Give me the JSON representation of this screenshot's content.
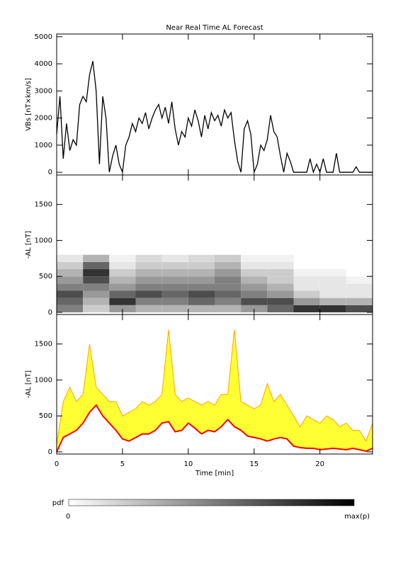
{
  "chart_data": [
    {
      "type": "line",
      "title": "Near Real Time AL Forecast",
      "ylabel": "VBs [nT×km/s]",
      "color": "#000000",
      "x": [
        0,
        0.25,
        0.5,
        0.75,
        1,
        1.25,
        1.5,
        1.75,
        2,
        2.25,
        2.5,
        2.75,
        3,
        3.25,
        3.5,
        3.75,
        4,
        4.25,
        4.5,
        4.75,
        5,
        5.25,
        5.5,
        5.75,
        6,
        6.25,
        6.5,
        6.75,
        7,
        7.25,
        7.5,
        7.75,
        8,
        8.25,
        8.5,
        8.75,
        9,
        9.25,
        9.5,
        9.75,
        10,
        10.25,
        10.5,
        10.75,
        11,
        11.25,
        11.5,
        11.75,
        12,
        12.25,
        12.5,
        12.75,
        13,
        13.25,
        13.5,
        13.75,
        14,
        14.25,
        14.5,
        14.75,
        15,
        15.25,
        15.5,
        15.75,
        16,
        16.25,
        16.5,
        16.75,
        17,
        17.25,
        17.5,
        17.75,
        18,
        18.25,
        18.5,
        18.75,
        19,
        19.25,
        19.5,
        19.75,
        20,
        20.25,
        20.5,
        20.75,
        21,
        21.25,
        21.5,
        21.75,
        22,
        22.25,
        22.5,
        22.75,
        23,
        23.25,
        23.5,
        23.75,
        24
      ],
      "values": [
        1400,
        2800,
        500,
        1800,
        800,
        1200,
        1000,
        2500,
        2800,
        2600,
        3600,
        4100,
        3000,
        300,
        2800,
        2000,
        0,
        600,
        1000,
        300,
        0,
        1000,
        1300,
        1800,
        1500,
        2000,
        1800,
        2200,
        1600,
        2000,
        2300,
        2500,
        2000,
        2400,
        1800,
        2600,
        1600,
        1000,
        1500,
        1300,
        2000,
        1700,
        2300,
        1900,
        1300,
        2100,
        1600,
        2200,
        1900,
        2100,
        1700,
        2300,
        2000,
        2200,
        1200,
        400,
        0,
        1600,
        1900,
        1400,
        0,
        300,
        1000,
        800,
        1200,
        2100,
        1500,
        1300,
        600,
        0,
        700,
        400,
        0,
        0,
        0,
        0,
        0,
        500,
        0,
        300,
        0,
        500,
        0,
        0,
        0,
        700,
        0,
        0,
        0,
        0,
        0,
        200,
        0,
        0,
        0,
        0,
        0
      ],
      "xlim": [
        0,
        24
      ],
      "xticks": [
        0,
        5,
        10,
        15,
        20
      ],
      "show_xtick_labels": false,
      "ylim": [
        -100,
        5100
      ],
      "yticks": [
        0,
        1000,
        2000,
        3000,
        4000,
        5000
      ]
    },
    {
      "type": "heatmap",
      "ylabel": "-AL [nT]",
      "colors": [
        "#ffffff",
        "#000000"
      ],
      "x_edges": [
        0,
        2,
        4,
        6,
        8,
        10,
        12,
        14,
        16,
        18,
        20,
        22,
        24
      ],
      "y_edges": [
        0,
        100,
        200,
        300,
        400,
        500,
        600,
        700,
        800
      ],
      "z": [
        [
          0.5,
          0.2,
          0.4,
          0.3,
          0.3,
          0.3,
          0.3,
          0.4,
          0.6,
          0.8,
          0.8,
          0.7
        ],
        [
          0.6,
          0.3,
          0.8,
          0.5,
          0.5,
          0.6,
          0.5,
          0.7,
          0.7,
          0.4,
          0.3,
          0.3
        ],
        [
          0.7,
          0.4,
          0.6,
          0.7,
          0.6,
          0.7,
          0.6,
          0.5,
          0.4,
          0.2,
          0.1,
          0.1
        ],
        [
          0.5,
          0.5,
          0.4,
          0.5,
          0.5,
          0.5,
          0.5,
          0.4,
          0.3,
          0.1,
          0.1,
          0.1
        ],
        [
          0.4,
          0.7,
          0.3,
          0.4,
          0.4,
          0.4,
          0.5,
          0.3,
          0.2,
          0.1,
          0.1,
          0.05
        ],
        [
          0.3,
          0.8,
          0.2,
          0.3,
          0.3,
          0.3,
          0.4,
          0.2,
          0.2,
          0.05,
          0.05,
          0
        ],
        [
          0.2,
          0.6,
          0.1,
          0.2,
          0.2,
          0.2,
          0.3,
          0.1,
          0.1,
          0,
          0,
          0
        ],
        [
          0.1,
          0.3,
          0.05,
          0.15,
          0.1,
          0.15,
          0.2,
          0.05,
          0.05,
          0,
          0,
          0
        ]
      ],
      "xlim": [
        0,
        24
      ],
      "xticks": [
        0,
        5,
        10,
        15,
        20
      ],
      "show_xtick_labels": false,
      "ylim": [
        -30,
        1910
      ],
      "yticks": [
        0,
        500,
        1000,
        1500
      ]
    },
    {
      "type": "band",
      "ylabel": "-AL [nT]",
      "xlabel": "Time [min]",
      "x": [
        0,
        0.5,
        1,
        1.5,
        2,
        2.5,
        3,
        3.5,
        4,
        4.5,
        5,
        5.5,
        6,
        6.5,
        7,
        7.5,
        8,
        8.5,
        9,
        9.5,
        10,
        10.5,
        11,
        11.5,
        12,
        12.5,
        13,
        13.5,
        14,
        14.5,
        15,
        15.5,
        16,
        16.5,
        17,
        17.5,
        18,
        18.5,
        19,
        19.5,
        20,
        20.5,
        21,
        21.5,
        22,
        22.5,
        23,
        23.5,
        24
      ],
      "series": [
        {
          "color": "#ff0000",
          "values": [
            0,
            200,
            250,
            300,
            400,
            550,
            650,
            500,
            400,
            300,
            180,
            150,
            200,
            250,
            250,
            300,
            400,
            420,
            280,
            300,
            400,
            330,
            250,
            300,
            280,
            350,
            450,
            350,
            300,
            220,
            200,
            180,
            150,
            180,
            200,
            180,
            80,
            60,
            50,
            50,
            30,
            40,
            50,
            40,
            30,
            50,
            30,
            10,
            50
          ]
        }
      ],
      "band": {
        "color": "#ffff33",
        "edge_color": "#ffa500",
        "upper": [
          100,
          700,
          900,
          700,
          800,
          1500,
          900,
          800,
          700,
          700,
          500,
          550,
          600,
          700,
          650,
          700,
          800,
          1700,
          800,
          700,
          750,
          700,
          650,
          700,
          650,
          800,
          800,
          1700,
          700,
          650,
          600,
          650,
          950,
          700,
          800,
          650,
          500,
          350,
          500,
          450,
          400,
          500,
          450,
          350,
          400,
          300,
          300,
          150,
          400
        ]
      },
      "xlim": [
        0,
        24
      ],
      "xticks": [
        0,
        5,
        10,
        15,
        20
      ],
      "show_xtick_labels": true,
      "ylim": [
        -30,
        1910
      ],
      "yticks": [
        0,
        500,
        1000,
        1500
      ]
    },
    {
      "type": "colorbar",
      "label": "pdf",
      "tick_labels": [
        0,
        "max(p)"
      ],
      "colors": [
        "#ffffff",
        "#000000"
      ]
    }
  ]
}
